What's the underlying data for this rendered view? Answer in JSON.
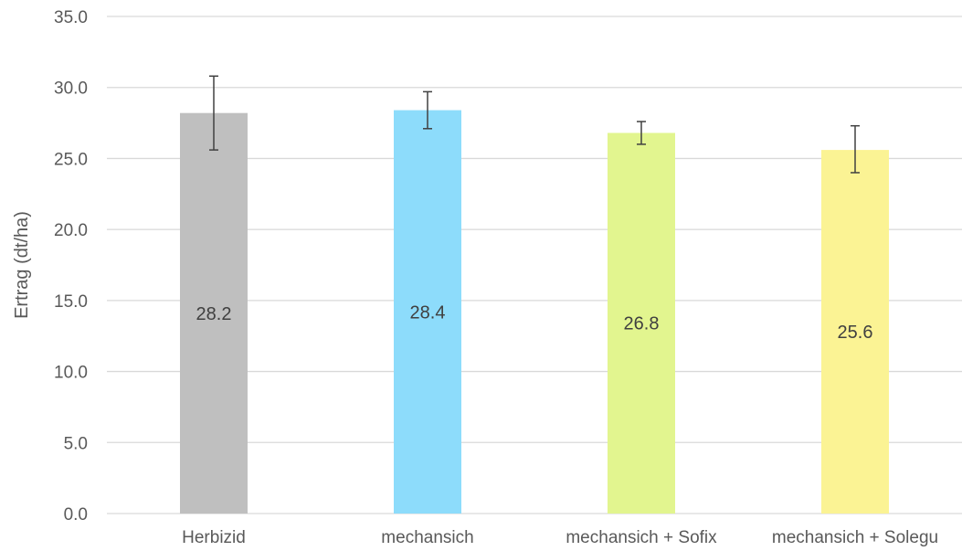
{
  "chart_data": {
    "type": "bar",
    "categories": [
      "Herbizid",
      "mechansich",
      "mechansich + Sofix",
      "mechansich + Solegu"
    ],
    "values": [
      28.2,
      28.4,
      26.8,
      25.6
    ],
    "data_labels": [
      "28.2",
      "28.4",
      "26.8",
      "25.6"
    ],
    "error_bars": [
      {
        "low": 25.6,
        "high": 30.8
      },
      {
        "low": 27.1,
        "high": 29.7
      },
      {
        "low": 26.0,
        "high": 27.6
      },
      {
        "low": 24.0,
        "high": 27.3
      }
    ],
    "bar_colors": [
      "#bfbfbf",
      "#8ddcfb",
      "#e2f58f",
      "#fbf394"
    ],
    "ylabel": "Ertrag (dt/ha)",
    "xlabel": "",
    "title": "",
    "ylim": [
      0,
      35
    ],
    "ytick_values": [
      0,
      5,
      10,
      15,
      20,
      25,
      30,
      35
    ],
    "ytick_labels": [
      "0.0",
      "5.0",
      "10.0",
      "15.0",
      "20.0",
      "25.0",
      "30.0",
      "35.0"
    ],
    "grid": true,
    "legend": "none",
    "colors": {
      "grid": "#d9d9d9",
      "text": "#595959",
      "data_label": "#404040",
      "error_bar": "#404040"
    }
  }
}
